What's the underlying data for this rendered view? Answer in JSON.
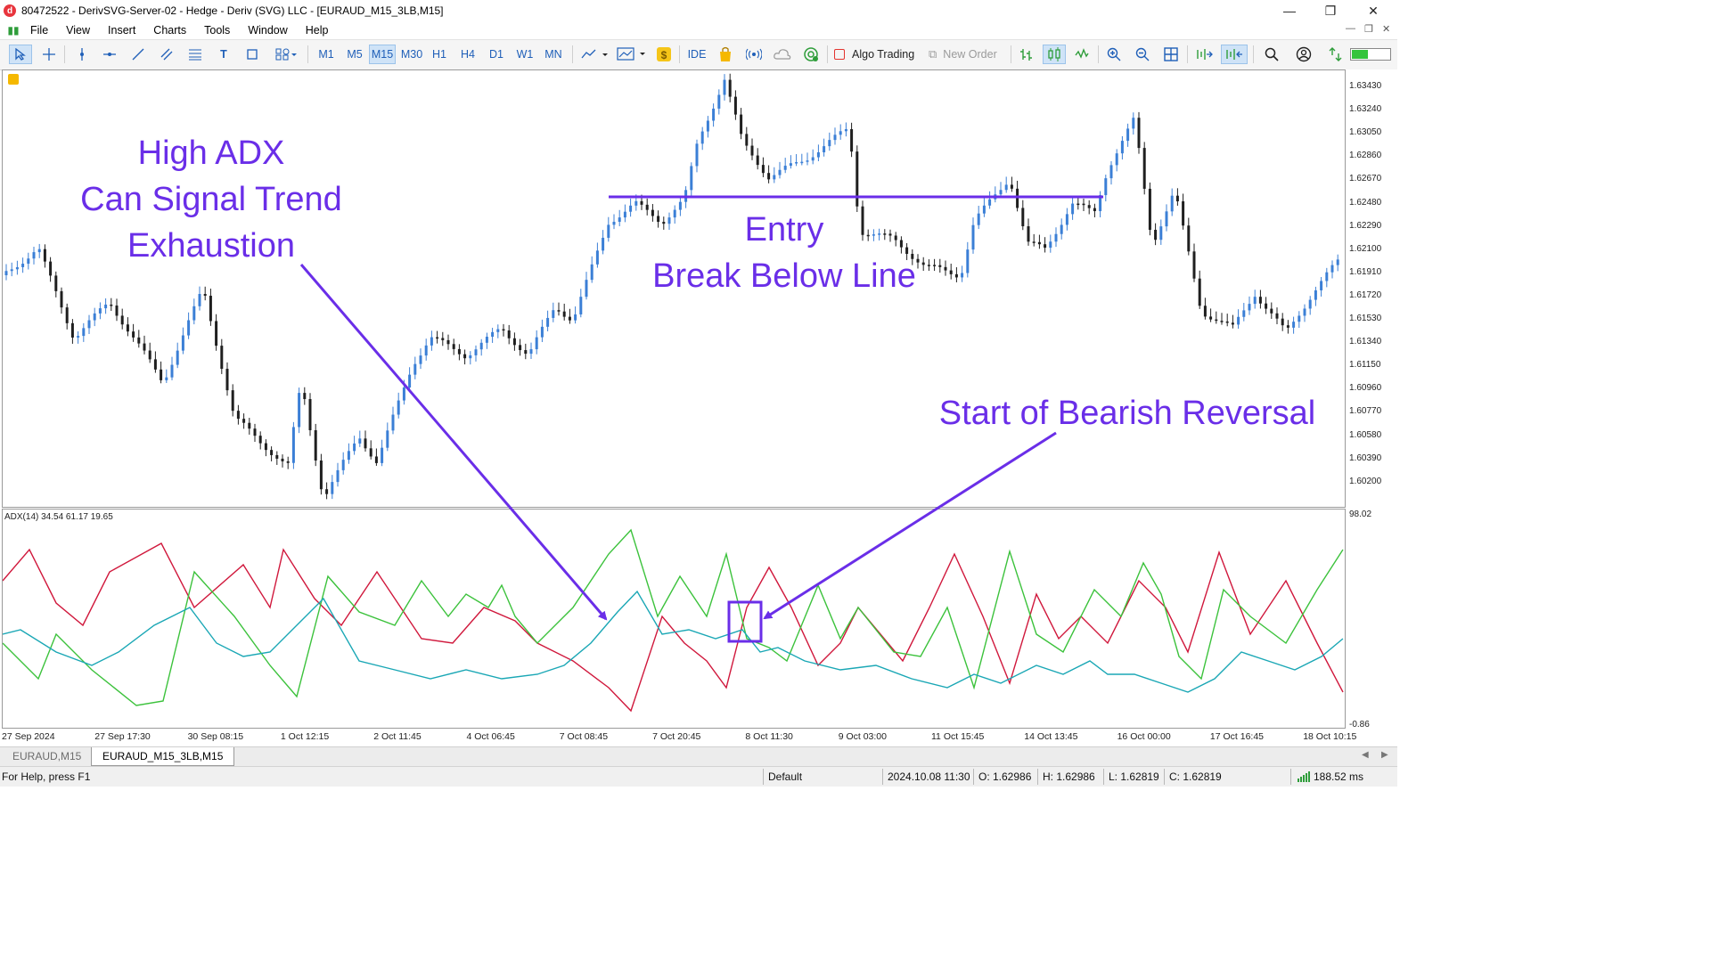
{
  "window": {
    "title": "80472522 - DerivSVG-Server-02 - Hedge - Deriv (SVG) LLC - [EURAUD_M15_3LB,M15]",
    "app_icon": "deriv-app-icon",
    "controls": [
      "minimize-icon",
      "restore-icon",
      "close-icon"
    ]
  },
  "menu": {
    "items": [
      "File",
      "View",
      "Insert",
      "Charts",
      "Tools",
      "Window",
      "Help"
    ]
  },
  "toolbar": {
    "timeframes": [
      "M1",
      "M5",
      "M15",
      "M30",
      "H1",
      "H4",
      "D1",
      "W1",
      "MN"
    ],
    "selected_timeframe": "M15",
    "ide": "IDE",
    "algo_trading": "Algo Trading",
    "new_order": "New Order"
  },
  "chart": {
    "symbol_tab": "EURAUD,M15",
    "active_tab": "EURAUD_M15_3LB,M15",
    "price_labels": [
      "1.63430",
      "1.63240",
      "1.63050",
      "1.62860",
      "1.62670",
      "1.62480",
      "1.62290",
      "1.62100",
      "1.61910",
      "1.61720",
      "1.61530",
      "1.61340",
      "1.61150",
      "1.60960",
      "1.60770",
      "1.60580",
      "1.60390",
      "1.60200"
    ],
    "time_labels": [
      "27 Sep 2024",
      "27 Sep 17:30",
      "30 Sep 08:15",
      "1 Oct 12:15",
      "2 Oct 11:45",
      "4 Oct 06:45",
      "7 Oct 08:45",
      "7 Oct 20:45",
      "8 Oct 11:30",
      "9 Oct 03:00",
      "11 Oct 15:45",
      "14 Oct 13:45",
      "16 Oct 00:00",
      "17 Oct 16:45",
      "18 Oct 10:15"
    ],
    "indicator_label": "ADX(14) 34.54 61.17 19.65",
    "indicator_max": "98.02",
    "indicator_min": "-0.86",
    "colors": {
      "bull": "#3b7fd6",
      "bear": "#1f1f1f",
      "adx": "#1aa7b5",
      "plus_di": "#3cc23c",
      "minus_di": "#d0183c",
      "annotation": "#6a2ee8"
    }
  },
  "annotations": {
    "high_adx": [
      "High ADX",
      "Can Signal Trend",
      "Exhaustion"
    ],
    "entry": [
      "Entry",
      "Break Below Line"
    ],
    "reversal": "Start of Bearish Reversal"
  },
  "status": {
    "help": "For Help, press F1",
    "profile": "Default",
    "datetime": "2024.10.08 11:30",
    "open": "O: 1.62986",
    "high": "H: 1.62986",
    "low": "L: 1.62819",
    "close": "C: 1.62819",
    "traffic": "188.52 ms"
  }
}
